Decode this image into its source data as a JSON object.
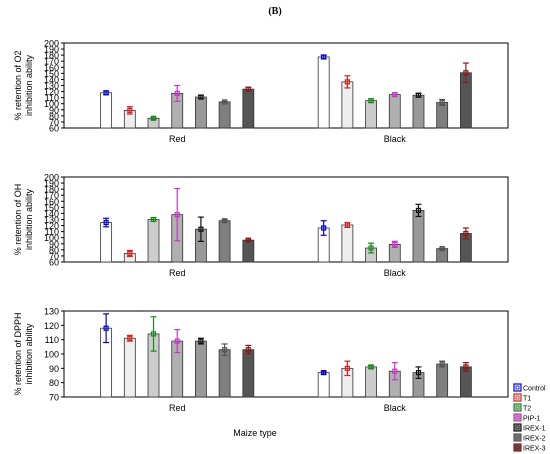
{
  "figure": {
    "label": "(B)",
    "xlabel": "Maize type"
  },
  "legend": {
    "entries": [
      {
        "name": "Control",
        "fill": "#ffffff",
        "stroke": "#0000cc"
      },
      {
        "name": "T1",
        "fill": "#eeeeee",
        "stroke": "#d62020"
      },
      {
        "name": "T2",
        "fill": "#cccccc",
        "stroke": "#1a8a1a"
      },
      {
        "name": "PIP-1",
        "fill": "#b0b0b0",
        "stroke": "#cc33cc"
      },
      {
        "name": "IREX-1",
        "fill": "#999999",
        "stroke": "#111111"
      },
      {
        "name": "IREX-2",
        "fill": "#7f7f7f",
        "stroke": "#555555"
      },
      {
        "name": "IREX-3",
        "fill": "#555555",
        "stroke": "#8b1a1a"
      }
    ]
  },
  "chart_data": [
    {
      "type": "bar",
      "ylabel": "% retention of O2 inhibition ability",
      "ylim": [
        60,
        200
      ],
      "yticks": [
        60,
        70,
        80,
        90,
        100,
        110,
        120,
        130,
        140,
        150,
        160,
        170,
        180,
        190,
        200
      ],
      "categories": [
        "Red",
        "Black"
      ],
      "series": [
        {
          "name": "Control",
          "values": [
            118,
            177
          ],
          "errors": [
            3,
            3
          ]
        },
        {
          "name": "T1",
          "values": [
            89,
            136
          ],
          "errors": [
            6,
            10
          ]
        },
        {
          "name": "T2",
          "values": [
            76,
            105
          ],
          "errors": [
            2,
            3
          ]
        },
        {
          "name": "PIP-1",
          "values": [
            117,
            115
          ],
          "errors": [
            13,
            3
          ]
        },
        {
          "name": "IREX-1",
          "values": [
            111,
            114
          ],
          "errors": [
            3,
            3
          ]
        },
        {
          "name": "IREX-2",
          "values": [
            103,
            102
          ],
          "errors": [
            1,
            5
          ]
        },
        {
          "name": "IREX-3",
          "values": [
            124,
            151
          ],
          "errors": [
            3,
            16
          ]
        }
      ]
    },
    {
      "type": "bar",
      "ylabel": "% retention of OH inhibition ability",
      "ylim": [
        60,
        200
      ],
      "yticks": [
        60,
        70,
        80,
        90,
        100,
        110,
        120,
        130,
        140,
        150,
        160,
        170,
        180,
        190,
        200
      ],
      "categories": [
        "Red",
        "Black"
      ],
      "series": [
        {
          "name": "Control",
          "values": [
            125,
            116
          ],
          "errors": [
            7,
            12
          ]
        },
        {
          "name": "T1",
          "values": [
            74,
            121
          ],
          "errors": [
            5,
            4
          ]
        },
        {
          "name": "T2",
          "values": [
            130,
            83
          ],
          "errors": [
            3,
            8
          ]
        },
        {
          "name": "PIP-1",
          "values": [
            138,
            89
          ],
          "errors": [
            43,
            5
          ]
        },
        {
          "name": "IREX-1",
          "values": [
            114,
            145
          ],
          "errors": [
            20,
            10
          ]
        },
        {
          "name": "IREX-2",
          "values": [
            128,
            82
          ],
          "errors": [
            2,
            1
          ]
        },
        {
          "name": "IREX-3",
          "values": [
            96,
            107
          ],
          "errors": [
            2,
            9
          ]
        }
      ]
    },
    {
      "type": "bar",
      "ylabel": "% retention of DPPH inhibition ability",
      "ylim": [
        70,
        130
      ],
      "yticks": [
        70,
        80,
        90,
        100,
        110,
        120,
        130
      ],
      "categories": [
        "Red",
        "Black"
      ],
      "series": [
        {
          "name": "Control",
          "values": [
            118,
            87
          ],
          "errors": [
            10,
            1
          ]
        },
        {
          "name": "T1",
          "values": [
            111,
            90
          ],
          "errors": [
            2,
            5
          ]
        },
        {
          "name": "T2",
          "values": [
            114,
            91
          ],
          "errors": [
            12,
            1
          ]
        },
        {
          "name": "PIP-1",
          "values": [
            109,
            88
          ],
          "errors": [
            8,
            6
          ]
        },
        {
          "name": "IREX-1",
          "values": [
            109,
            87
          ],
          "errors": [
            2,
            4
          ]
        },
        {
          "name": "IREX-2",
          "values": [
            103,
            93
          ],
          "errors": [
            4,
            2
          ]
        },
        {
          "name": "IREX-3",
          "values": [
            103,
            91
          ],
          "errors": [
            3,
            3
          ]
        }
      ]
    }
  ]
}
